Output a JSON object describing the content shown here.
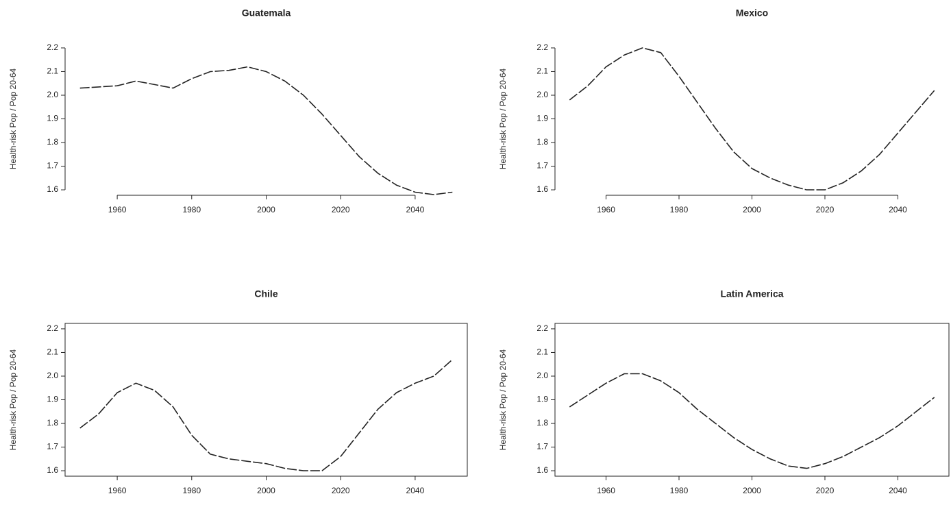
{
  "chart_data": [
    {
      "type": "line",
      "title": "Guatemala",
      "ylabel": "Health-risk Pop / Pop 20-64",
      "box": false,
      "x": [
        1950,
        1955,
        1960,
        1965,
        1970,
        1975,
        1980,
        1985,
        1990,
        1995,
        2000,
        2005,
        2010,
        2015,
        2020,
        2025,
        2030,
        2035,
        2040,
        2045,
        2050
      ],
      "series": [
        {
          "color": "#222222",
          "values": [
            2.03,
            2.035,
            2.04,
            2.06,
            2.045,
            2.03,
            2.07,
            2.1,
            2.105,
            2.12,
            2.1,
            2.06,
            2.0,
            1.92,
            1.83,
            1.74,
            1.67,
            1.62,
            1.59,
            1.58,
            1.59
          ]
        }
      ],
      "xlim": [
        1946,
        2054
      ],
      "xticks": [
        1960,
        1980,
        2000,
        2020,
        2040
      ],
      "ylim": [
        1.577,
        2.223
      ],
      "yticks": [
        1.6,
        1.7,
        1.8,
        1.9,
        {
          "value": 2,
          "label": "2.0"
        },
        2.1,
        2.2
      ]
    },
    {
      "type": "line",
      "title": "Mexico",
      "ylabel": "Health-risk Pop / Pop 20-64",
      "box": false,
      "x": [
        1950,
        1955,
        1960,
        1965,
        1970,
        1975,
        1980,
        1985,
        1990,
        1995,
        2000,
        2005,
        2010,
        2015,
        2020,
        2025,
        2030,
        2035,
        2040,
        2045,
        2050
      ],
      "series": [
        {
          "color": "#222222",
          "values": [
            1.98,
            2.04,
            2.12,
            2.17,
            2.2,
            2.18,
            2.08,
            1.97,
            1.86,
            1.76,
            1.69,
            1.65,
            1.62,
            1.6,
            1.6,
            1.63,
            1.68,
            1.75,
            1.84,
            1.93,
            2.02
          ]
        }
      ],
      "xlim": [
        1946,
        2054
      ],
      "xticks": [
        1960,
        1980,
        2000,
        2020,
        2040
      ],
      "ylim": [
        1.577,
        2.223
      ],
      "yticks": [
        1.6,
        1.7,
        1.8,
        1.9,
        {
          "value": 2,
          "label": "2.0"
        },
        2.1,
        2.2
      ]
    },
    {
      "type": "line",
      "title": "Chile",
      "ylabel": "Health-risk Pop / Pop 20-64",
      "box": true,
      "x": [
        1950,
        1955,
        1960,
        1965,
        1970,
        1975,
        1980,
        1985,
        1990,
        1995,
        2000,
        2005,
        2010,
        2015,
        2020,
        2025,
        2030,
        2035,
        2040,
        2045,
        2050
      ],
      "series": [
        {
          "color": "#222222",
          "values": [
            1.78,
            1.84,
            1.93,
            1.97,
            1.94,
            1.87,
            1.75,
            1.67,
            1.65,
            1.64,
            1.63,
            1.61,
            1.6,
            1.6,
            1.66,
            1.76,
            1.86,
            1.93,
            1.97,
            2.0,
            2.07
          ]
        }
      ],
      "xlim": [
        1946,
        2054
      ],
      "xticks": [
        1960,
        1980,
        2000,
        2020,
        2040
      ],
      "ylim": [
        1.577,
        2.223
      ],
      "yticks": [
        1.6,
        1.7,
        1.8,
        1.9,
        {
          "value": 2,
          "label": "2.0"
        },
        2.1,
        2.2
      ]
    },
    {
      "type": "line",
      "title": "Latin America",
      "ylabel": "Health-risk Pop / Pop 20-64",
      "box": true,
      "x": [
        1950,
        1955,
        1960,
        1965,
        1970,
        1975,
        1980,
        1985,
        1990,
        1995,
        2000,
        2005,
        2010,
        2015,
        2020,
        2025,
        2030,
        2035,
        2040,
        2045,
        2050
      ],
      "series": [
        {
          "color": "#222222",
          "values": [
            1.87,
            1.92,
            1.97,
            2.01,
            2.01,
            1.98,
            1.93,
            1.86,
            1.8,
            1.74,
            1.69,
            1.65,
            1.62,
            1.61,
            1.63,
            1.66,
            1.7,
            1.74,
            1.79,
            1.85,
            1.91
          ]
        }
      ],
      "xlim": [
        1946,
        2054
      ],
      "xticks": [
        1960,
        1980,
        2000,
        2020,
        2040
      ],
      "ylim": [
        1.577,
        2.223
      ],
      "yticks": [
        1.6,
        1.7,
        1.8,
        1.9,
        {
          "value": 2,
          "label": "2.0"
        },
        2.1,
        2.2
      ]
    }
  ]
}
